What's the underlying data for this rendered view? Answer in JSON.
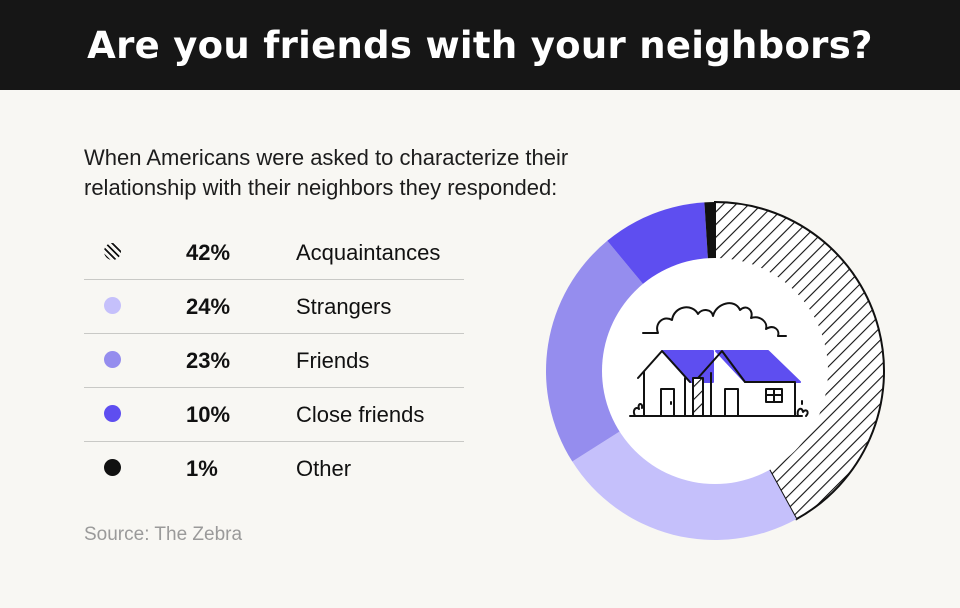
{
  "header": {
    "title": "Are you friends with your neighbors?"
  },
  "intro": {
    "line1": "When Americans were asked to characterize their",
    "line2": "relationship with their neighbors they responded:"
  },
  "source": "Source: The Zebra",
  "colors": {
    "header_bg": "#161616",
    "background": "#f8f7f3",
    "acquaintances_hatch": "#111111",
    "strangers": "#c5c0fb",
    "friends": "#958dee",
    "close_friends": "#5e4ef0",
    "other": "#111111"
  },
  "chart_data": {
    "type": "pie",
    "style": "donut",
    "categories": [
      "Acquaintances",
      "Strangers",
      "Friends",
      "Close friends",
      "Other"
    ],
    "values": [
      42,
      24,
      23,
      10,
      1
    ],
    "value_labels": [
      "42%",
      "24%",
      "23%",
      "10%",
      "1%"
    ],
    "unit": "%",
    "legend_placement": "left",
    "center_icon": "houses-icon"
  }
}
